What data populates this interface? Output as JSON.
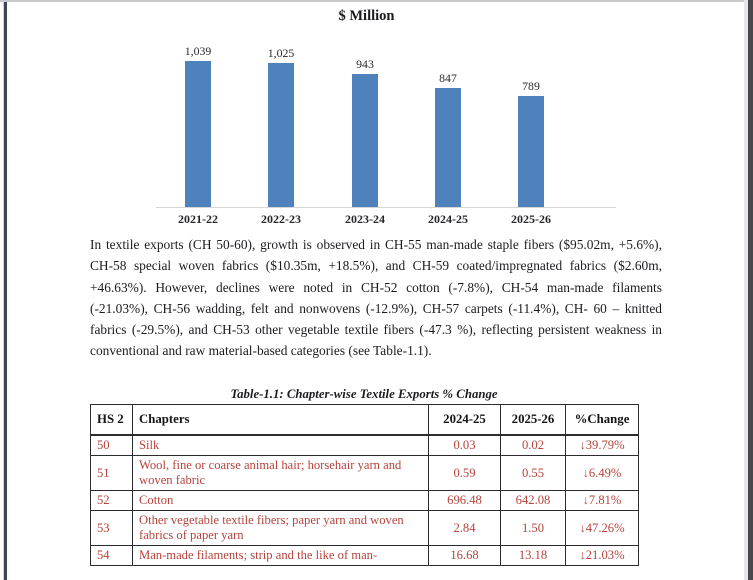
{
  "chart_data": {
    "type": "bar",
    "title": "$ Million",
    "categories": [
      "2021-22",
      "2022-23",
      "2023-24",
      "2024-25",
      "2025-26"
    ],
    "values": [
      1039,
      1025,
      943,
      847,
      789
    ],
    "value_labels": [
      "1,039",
      "1,025",
      "943",
      "847",
      "789"
    ],
    "xlabel": "",
    "ylabel": "",
    "ylim": [
      0,
      1100
    ],
    "grid": false,
    "legend": false,
    "bar_color": "#4f81bd"
  },
  "document": {
    "paragraph": "In textile exports (CH 50-60), growth is observed in CH-55 man-made staple fibers ($95.02m, +5.6%), CH-58 special woven fabrics ($10.35m, +18.5%), and CH-59 coated/impregnated fabrics ($2.60m, +46.63%). However, declines were noted in CH-52 cotton (-7.8%), CH-54 man-made filaments (-21.03%), CH-56 wadding, felt and nonwovens (-12.9%), CH-57 carpets (-11.4%), CH- 60 – knitted fabrics (-29.5%), and CH-53 other vegetable textile fibers (-47.3 %), reflecting persistent weakness in conventional and raw material-based categories (see Table-1.1).",
    "table": {
      "caption": "Table-1.1: Chapter-wise Textile Exports % Change",
      "headers": [
        "HS 2",
        "Chapters",
        "2024-25",
        "2025-26",
        "%Change"
      ],
      "rows": [
        [
          "50",
          "Silk",
          "0.03",
          "0.02",
          "↓39.79%"
        ],
        [
          "51",
          "Wool, fine or coarse animal hair; horsehair yarn and woven fabric",
          "0.59",
          "0.55",
          "↓6.49%"
        ],
        [
          "52",
          "Cotton",
          "696.48",
          "642.08",
          "↓7.81%"
        ],
        [
          "53",
          "Other vegetable textile fibers; paper yarn and woven fabrics of paper yarn",
          "2.84",
          "1.50",
          "↓47.26%"
        ],
        [
          "54",
          "Man-made filaments; strip and the like of man-",
          "16.68",
          "13.18",
          "↓21.03%"
        ]
      ],
      "text_color": "#b5433c"
    }
  }
}
